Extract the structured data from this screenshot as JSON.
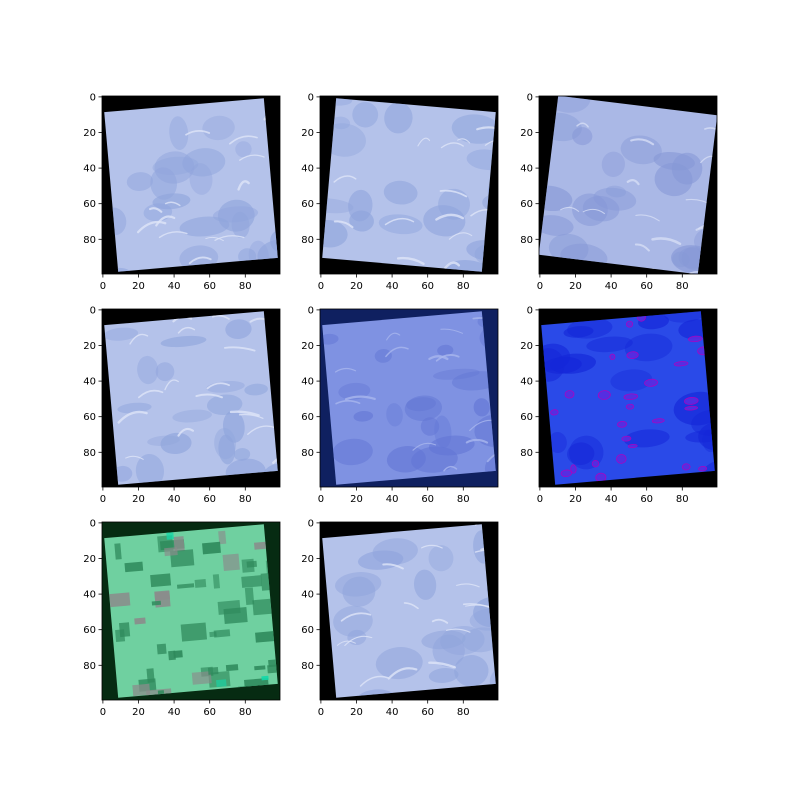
{
  "figure": {
    "background": "#ffffff",
    "grid": "3x3",
    "n_panels": 8,
    "empty_cell": "bottom-right"
  },
  "chart_data": [
    {
      "type": "heatmap",
      "xlim": [
        0,
        99
      ],
      "ylim": [
        99,
        0
      ],
      "xticks": [
        0,
        20,
        40,
        60,
        80
      ],
      "yticks": [
        0,
        20,
        40,
        60,
        80
      ],
      "image": {
        "rotation_deg": -5,
        "fill": "#b4c2ea",
        "fill_dark": "#8fa4dc",
        "highlight": "#dfe5f8",
        "border": "#000000",
        "texture": "water"
      }
    },
    {
      "type": "heatmap",
      "xlim": [
        0,
        99
      ],
      "ylim": [
        99,
        0
      ],
      "xticks": [
        0,
        20,
        40,
        60,
        80
      ],
      "yticks": [
        0,
        20,
        40,
        60,
        80
      ],
      "image": {
        "rotation_deg": 5,
        "fill": "#b4c2ea",
        "fill_dark": "#8fa4dc",
        "highlight": "#dfe5f8",
        "border": "#000000",
        "texture": "water"
      }
    },
    {
      "type": "heatmap",
      "xlim": [
        0,
        99
      ],
      "ylim": [
        99,
        0
      ],
      "xticks": [
        0,
        20,
        40,
        60,
        80
      ],
      "yticks": [
        0,
        20,
        40,
        60,
        80
      ],
      "image": {
        "rotation_deg": 7,
        "fill": "#aab8e6",
        "fill_dark": "#8698d6",
        "highlight": "#d6ddf5",
        "border": "#000000",
        "texture": "water"
      }
    },
    {
      "type": "heatmap",
      "xlim": [
        0,
        99
      ],
      "ylim": [
        99,
        0
      ],
      "xticks": [
        0,
        20,
        40,
        60,
        80
      ],
      "yticks": [
        0,
        20,
        40,
        60,
        80
      ],
      "image": {
        "rotation_deg": -5,
        "fill": "#b4c2ea",
        "fill_dark": "#8fa4dc",
        "highlight": "#dfe5f8",
        "border": "#000000",
        "texture": "water"
      }
    },
    {
      "type": "heatmap",
      "xlim": [
        0,
        99
      ],
      "ylim": [
        99,
        0
      ],
      "xticks": [
        0,
        20,
        40,
        60,
        80
      ],
      "yticks": [
        0,
        20,
        40,
        60,
        80
      ],
      "image": {
        "rotation_deg": -5,
        "fill": "#7f92e2",
        "fill_dark": "#6275d4",
        "highlight": "#a9b6ee",
        "border": "#0f2060",
        "texture": "water"
      }
    },
    {
      "type": "heatmap",
      "xlim": [
        0,
        99
      ],
      "ylim": [
        99,
        0
      ],
      "xticks": [
        0,
        20,
        40,
        60,
        80
      ],
      "yticks": [
        0,
        20,
        40,
        60,
        80
      ],
      "image": {
        "rotation_deg": -5,
        "fill": "#2a4ae8",
        "fill_dark": "#1426d8",
        "highlight": "#5a2ce0",
        "border": "#000000",
        "texture": "blobs"
      }
    },
    {
      "type": "heatmap",
      "xlim": [
        0,
        99
      ],
      "ylim": [
        99,
        0
      ],
      "xticks": [
        0,
        20,
        40,
        60,
        80
      ],
      "yticks": [
        0,
        20,
        40,
        60,
        80
      ],
      "image": {
        "rotation_deg": -5,
        "fill": "#6fd0a0",
        "fill_dark": "#2f8a5c",
        "highlight": "#8b8b8b",
        "accent": "#14d8a8",
        "border": "#062b12",
        "texture": "blocks"
      }
    },
    {
      "type": "heatmap",
      "xlim": [
        0,
        99
      ],
      "ylim": [
        99,
        0
      ],
      "xticks": [
        0,
        20,
        40,
        60,
        80
      ],
      "yticks": [
        0,
        20,
        40,
        60,
        80
      ],
      "image": {
        "rotation_deg": -5,
        "fill": "#b4c2ea",
        "fill_dark": "#8fa4dc",
        "highlight": "#dfe5f8",
        "border": "#000000",
        "texture": "water"
      }
    }
  ]
}
